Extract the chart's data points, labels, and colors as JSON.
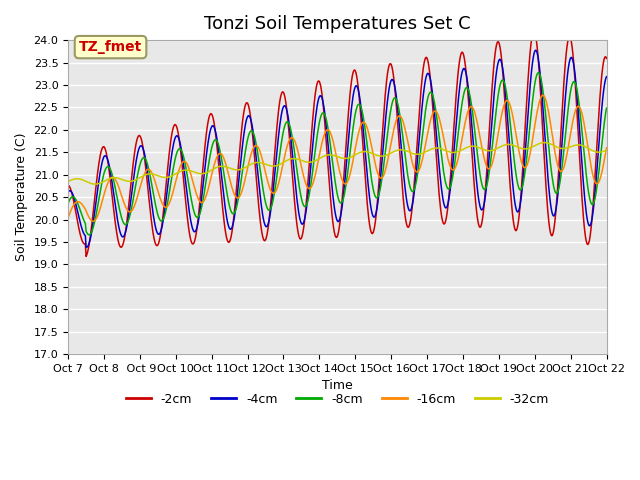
{
  "title": "Tonzi Soil Temperatures Set C",
  "xlabel": "Time",
  "ylabel": "Soil Temperature (C)",
  "annotation_text": "TZ_fmet",
  "annotation_color": "#cc0000",
  "annotation_bg": "#ffffcc",
  "annotation_border": "#999966",
  "ylim": [
    17.0,
    24.0
  ],
  "yticks": [
    17.0,
    17.5,
    18.0,
    18.5,
    19.0,
    19.5,
    20.0,
    20.5,
    21.0,
    21.5,
    22.0,
    22.5,
    23.0,
    23.5,
    24.0
  ],
  "xtick_labels": [
    "Oct 7",
    "Oct 8",
    " Oct 9",
    "Oct 10",
    "Oct 11",
    "Oct 12",
    "Oct 13",
    "Oct 14",
    "Oct 15",
    "Oct 16",
    "Oct 17",
    "Oct 18",
    "Oct 19",
    "Oct 20",
    "Oct 21",
    "Oct 22"
  ],
  "line_colors": [
    "#cc0000",
    "#0000cc",
    "#00aa00",
    "#ff8800",
    "#cccc00"
  ],
  "line_labels": [
    "-2cm",
    "-4cm",
    "-8cm",
    "-16cm",
    "-32cm"
  ],
  "plot_bg_color": "#e8e8e8",
  "grid_color": "#ffffff",
  "title_fontsize": 13,
  "axis_fontsize": 9,
  "tick_fontsize": 8
}
